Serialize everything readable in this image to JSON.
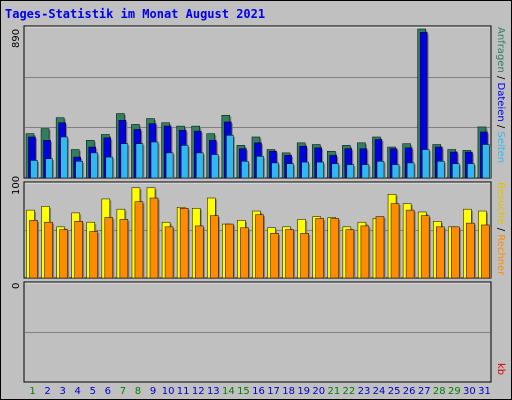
{
  "chart_data": {
    "type": "bar",
    "title": "Tages-Statistik im Monat August 2021",
    "categories": [
      "1",
      "2",
      "3",
      "4",
      "5",
      "6",
      "7",
      "8",
      "9",
      "10",
      "11",
      "12",
      "13",
      "14",
      "15",
      "16",
      "17",
      "18",
      "19",
      "20",
      "21",
      "22",
      "23",
      "24",
      "25",
      "26",
      "27",
      "28",
      "29",
      "30",
      "31"
    ],
    "weekend_days": [
      "1",
      "7",
      "8",
      "14",
      "15",
      "21",
      "22",
      "28",
      "29"
    ],
    "top_panel": {
      "ymax_label": "890",
      "ylim": [
        0,
        890
      ],
      "series": [
        {
          "name": "Anfragen",
          "color": "#308060",
          "values": [
            265,
            295,
            360,
            170,
            225,
            260,
            385,
            320,
            355,
            330,
            310,
            310,
            265,
            375,
            195,
            245,
            170,
            150,
            210,
            200,
            160,
            195,
            210,
            245,
            185,
            205,
            890,
            200,
            170,
            165,
            305
          ]
        },
        {
          "name": "Dateien",
          "color": "#0000e0",
          "values": [
            245,
            225,
            330,
            125,
            185,
            240,
            345,
            290,
            325,
            310,
            285,
            280,
            225,
            335,
            175,
            210,
            160,
            135,
            190,
            180,
            135,
            175,
            175,
            230,
            175,
            180,
            870,
            185,
            155,
            155,
            275
          ]
        },
        {
          "name": "Seiten",
          "color": "#30b8f0",
          "values": [
            105,
            115,
            245,
            100,
            150,
            125,
            205,
            205,
            215,
            150,
            195,
            150,
            140,
            255,
            100,
            130,
            90,
            85,
            95,
            95,
            85,
            80,
            80,
            100,
            80,
            90,
            170,
            100,
            85,
            85,
            200
          ]
        }
      ]
    },
    "bottom_panel": {
      "ymax_label": "100",
      "ylim": [
        0,
        100
      ],
      "series": [
        {
          "name": "Besuche",
          "color": "#ffff00",
          "values": [
            73,
            77,
            55,
            70,
            60,
            85,
            74,
            97,
            97,
            60,
            76,
            75,
            86,
            58,
            62,
            72,
            54,
            55,
            63,
            66,
            65,
            55,
            60,
            64,
            90,
            80,
            71,
            61,
            55,
            74,
            72
          ]
        },
        {
          "name": "Rechner",
          "color": "#ff8c00",
          "values": [
            62,
            60,
            52,
            61,
            50,
            65,
            63,
            82,
            86,
            55,
            75,
            56,
            67,
            58,
            54,
            68,
            48,
            52,
            48,
            64,
            64,
            52,
            56,
            66,
            80,
            73,
            67,
            55,
            55,
            59,
            57
          ]
        }
      ]
    },
    "kb_panel": {
      "ymax_label": "0",
      "values": []
    },
    "right_legend": {
      "top": {
        "anfragen": "Anfragen",
        "dateien": "Dateien",
        "seiten": "Seiten",
        "sep": " / "
      },
      "mid": {
        "besuche": "Besuche",
        "rechner": "Rechner",
        "sep": " / "
      },
      "bottom": {
        "kb": "kb"
      }
    },
    "colors": {
      "weekday_label": "#0000cc",
      "weekend_label": "#008000",
      "anfragen_text": "#308060",
      "dateien_text": "#0000ee",
      "seiten_text": "#30b8f0",
      "besuche_text": "#e0c000",
      "rechner_text": "#ff8c00",
      "kb_text": "#dd0000"
    },
    "grid": true
  }
}
